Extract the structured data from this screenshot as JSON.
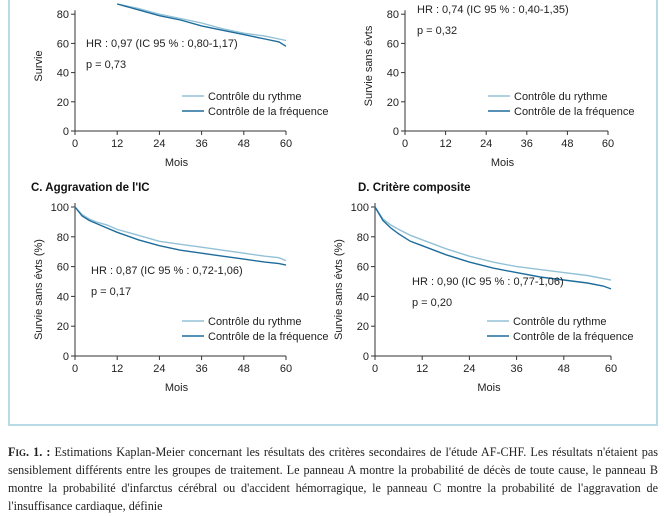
{
  "colors": {
    "frame": "#b9dbe6",
    "rythme": "#93c1d6",
    "frequence": "#1e6c9c",
    "axis": "#333333"
  },
  "chart_data": [
    {
      "panel": "A",
      "type": "line",
      "title": "",
      "xlabel": "Mois",
      "ylabel": "Survie",
      "xlim": [
        0,
        60
      ],
      "ylim": [
        0,
        100
      ],
      "xticks": [
        0,
        12,
        24,
        36,
        48,
        60
      ],
      "yticks": [
        0,
        20,
        40,
        60,
        80
      ],
      "annotation_lines": [
        "HR : 0,97 (IC 95 % : 0,80-1,17)",
        "p = 0,73"
      ],
      "legend": "bottom-right",
      "series": [
        {
          "name": "Contrôle du rythme",
          "color": "#93c1d6",
          "x": [
            12,
            18,
            24,
            30,
            36,
            42,
            48,
            54,
            58,
            60
          ],
          "y": [
            87,
            84,
            80,
            77,
            74,
            70,
            67,
            65,
            63,
            62
          ]
        },
        {
          "name": "Contrôle de la fréquence",
          "color": "#1e6c9c",
          "x": [
            12,
            18,
            24,
            30,
            36,
            42,
            48,
            54,
            58,
            60
          ],
          "y": [
            87,
            83,
            79,
            76,
            72,
            69,
            66,
            63,
            61,
            58
          ]
        }
      ]
    },
    {
      "panel": "B",
      "type": "line",
      "title": "",
      "xlabel": "Mois",
      "ylabel": "Survie sans évts",
      "xlim": [
        0,
        60
      ],
      "ylim": [
        0,
        100
      ],
      "xticks": [
        0,
        12,
        24,
        36,
        48,
        60
      ],
      "yticks": [
        0,
        20,
        40,
        60,
        80
      ],
      "annotation_lines": [
        "HR : 0,74 (IC 95 % : 0,40-1,35)",
        "p = 0,32"
      ],
      "legend": "bottom-right",
      "series": [
        {
          "name": "Contrôle du rythme",
          "color": "#93c1d6",
          "x": [],
          "y": []
        },
        {
          "name": "Contrôle de la fréquence",
          "color": "#1e6c9c",
          "x": [],
          "y": []
        }
      ]
    },
    {
      "panel": "C",
      "type": "line",
      "title": "C. Aggravation de l'IC",
      "xlabel": "Mois",
      "ylabel": "Survie sans évts (%)",
      "xlim": [
        0,
        60
      ],
      "ylim": [
        0,
        100
      ],
      "xticks": [
        0,
        12,
        24,
        36,
        48,
        60
      ],
      "yticks": [
        0,
        20,
        40,
        60,
        80,
        100
      ],
      "annotation_lines": [
        "HR : 0,87 (IC 95 % : 0,72-1,06)",
        "p = 0,17"
      ],
      "legend": "bottom-right",
      "series": [
        {
          "name": "Contrôle du rythme",
          "color": "#93c1d6",
          "x": [
            0,
            2,
            4,
            6,
            9,
            12,
            18,
            24,
            30,
            36,
            42,
            48,
            54,
            58,
            60
          ],
          "y": [
            100,
            95,
            92,
            90,
            88,
            85,
            81,
            77,
            75,
            73,
            71,
            69,
            67,
            66,
            64
          ]
        },
        {
          "name": "Contrôle de la fréquence",
          "color": "#1e6c9c",
          "x": [
            0,
            2,
            4,
            6,
            9,
            12,
            18,
            24,
            30,
            36,
            42,
            48,
            54,
            58,
            60
          ],
          "y": [
            100,
            94,
            91,
            89,
            86,
            83,
            78,
            74,
            71,
            69,
            67,
            65,
            63,
            62,
            61
          ]
        }
      ]
    },
    {
      "panel": "D",
      "type": "line",
      "title": "D. Critère composite",
      "xlabel": "Mois",
      "ylabel": "Survie sans évts (%)",
      "xlim": [
        0,
        60
      ],
      "ylim": [
        0,
        100
      ],
      "xticks": [
        0,
        12,
        24,
        36,
        48,
        60
      ],
      "yticks": [
        0,
        20,
        40,
        60,
        80,
        100
      ],
      "annotation_lines": [
        "HR : 0,90 (IC 95 % : 0,77-1,06)",
        "p = 0,20"
      ],
      "legend": "bottom-right",
      "series": [
        {
          "name": "Contrôle du rythme",
          "color": "#93c1d6",
          "x": [
            0,
            2,
            4,
            6,
            9,
            12,
            18,
            24,
            30,
            36,
            42,
            48,
            54,
            58,
            60
          ],
          "y": [
            100,
            92,
            88,
            85,
            81,
            78,
            72,
            67,
            63,
            60,
            58,
            56,
            54,
            52,
            51
          ]
        },
        {
          "name": "Contrôle de la fréquence",
          "color": "#1e6c9c",
          "x": [
            0,
            2,
            4,
            6,
            9,
            12,
            18,
            24,
            30,
            36,
            42,
            48,
            54,
            58,
            60
          ],
          "y": [
            100,
            91,
            86,
            82,
            77,
            74,
            68,
            63,
            59,
            56,
            53,
            51,
            49,
            47,
            45
          ]
        }
      ]
    }
  ],
  "caption": {
    "lead": "Fig. 1. :",
    "text": " Estimations Kaplan-Meier concernant les résultats des critères secondaires de l'étude AF-CHF. Les résultats n'étaient pas sensiblement différents entre les groupes de traitement. Le panneau A montre la probabilité de décès de toute cause, le panneau B montre la probabilité d'infarctus cérébral ou d'accident hémorragique, le panneau C montre la probabilité de l'aggravation de l'insuffisance cardiaque, définie"
  }
}
